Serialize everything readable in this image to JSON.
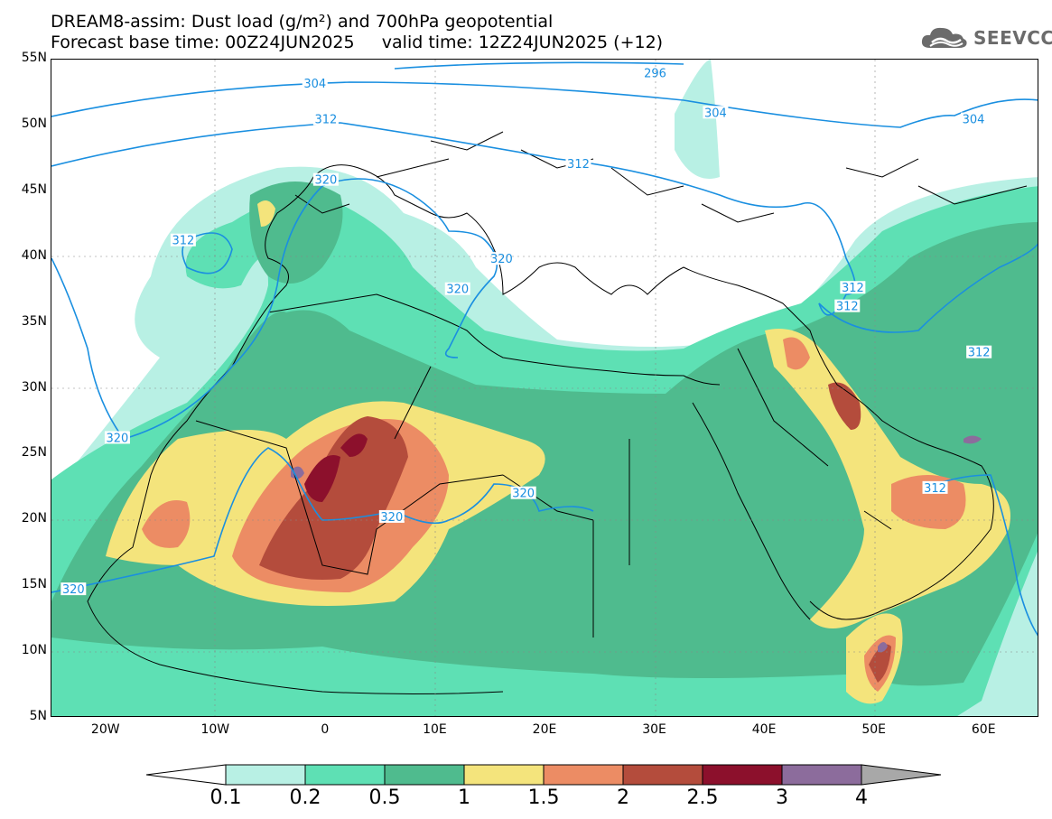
{
  "title": {
    "line1": "DREAM8-assim: Dust load (g/m²) and 700hPa geopotential",
    "line2": "Forecast base time: 00Z24JUN2025     valid time: 12Z24JUN2025 (+12)"
  },
  "logo": {
    "text": "SEEVCCC",
    "icon": "cloud-icon",
    "color": "#6b6b6b"
  },
  "axes": {
    "lat_labels": [
      "55N",
      "50N",
      "45N",
      "40N",
      "35N",
      "30N",
      "25N",
      "20N",
      "15N",
      "10N",
      "5N"
    ],
    "lat_values": [
      55,
      50,
      45,
      40,
      35,
      30,
      25,
      20,
      15,
      10,
      5
    ],
    "lon_labels": [
      "20W",
      "10W",
      "0",
      "10E",
      "20E",
      "30E",
      "40E",
      "50E",
      "60E"
    ],
    "lon_values": [
      -20,
      -10,
      0,
      10,
      20,
      30,
      40,
      50,
      60
    ],
    "lon_range": [
      -25,
      65
    ],
    "lat_range": [
      5,
      55
    ]
  },
  "contours": {
    "labels": [
      {
        "text": "296",
        "lon": 30,
        "lat": 54
      },
      {
        "text": "304",
        "lon": -1,
        "lat": 53.2
      },
      {
        "text": "304",
        "lon": 35.5,
        "lat": 51
      },
      {
        "text": "304",
        "lon": 59,
        "lat": 50.5
      },
      {
        "text": "312",
        "lon": 0,
        "lat": 50.5
      },
      {
        "text": "312",
        "lon": 23,
        "lat": 47.1
      },
      {
        "text": "312",
        "lon": -13,
        "lat": 41.3
      },
      {
        "text": "312",
        "lon": 48,
        "lat": 37.7
      },
      {
        "text": "312",
        "lon": 47.5,
        "lat": 36.3
      },
      {
        "text": "312",
        "lon": 59.5,
        "lat": 32.8
      },
      {
        "text": "312",
        "lon": 55.5,
        "lat": 22.5
      },
      {
        "text": "320",
        "lon": 0,
        "lat": 45.9
      },
      {
        "text": "320",
        "lon": 16,
        "lat": 39.9
      },
      {
        "text": "320",
        "lon": 12,
        "lat": 37.6
      },
      {
        "text": "320",
        "lon": 18,
        "lat": 22.1
      },
      {
        "text": "320",
        "lon": 6,
        "lat": 20.3
      },
      {
        "text": "320",
        "lon": -19,
        "lat": 26.3
      },
      {
        "text": "320",
        "lon": -23,
        "lat": 14.8
      }
    ],
    "color": "#1a8fe0"
  },
  "dust_colors": {
    "c01": "#b8f0e4",
    "c02": "#5ee0b4",
    "c05": "#4fbb8e",
    "c1": "#f4e47c",
    "c15": "#ec8c64",
    "c2": "#b44c3c",
    "c25": "#8c102c",
    "c3": "#8c6c9c",
    "c4": "#a8a8a8"
  },
  "colorbar": {
    "labels": [
      "0.1",
      "0.2",
      "0.5",
      "1",
      "1.5",
      "2",
      "2.5",
      "3",
      "4"
    ],
    "colors": [
      "#b8f0e4",
      "#5ee0b4",
      "#4fbb8e",
      "#f4e47c",
      "#ec8c64",
      "#b44c3c",
      "#8c102c",
      "#8c6c9c"
    ],
    "under_color": "#ffffff",
    "over_color": "#a8a8a8"
  }
}
